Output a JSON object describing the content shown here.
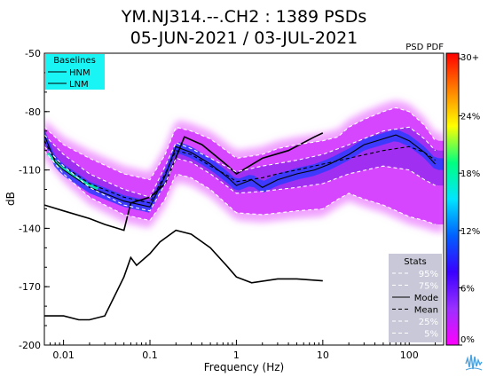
{
  "chart_data": {
    "type": "heatmap",
    "title": "YM.NJ314.--.CH2 : 1389 PSDs",
    "subtitle": "05-JUN-2021 / 03-JUL-2021",
    "xlabel": "Frequency (Hz)",
    "ylabel": "dB",
    "x_scale": "log",
    "xlim": [
      0.006,
      250
    ],
    "ylim": [
      -200,
      -50
    ],
    "x_ticks": [
      {
        "value": 0.01,
        "label": "0.01"
      },
      {
        "value": 0.1,
        "label": "0.1"
      },
      {
        "value": 1,
        "label": "1"
      },
      {
        "value": 10,
        "label": "10"
      },
      {
        "value": 100,
        "label": "100"
      }
    ],
    "y_ticks": [
      {
        "value": -50,
        "label": "-50"
      },
      {
        "value": -80,
        "label": "-80"
      },
      {
        "value": -110,
        "label": "-110"
      },
      {
        "value": -140,
        "label": "-140"
      },
      {
        "value": -170,
        "label": "-170"
      },
      {
        "value": -200,
        "label": "-200"
      }
    ],
    "colorbar": {
      "label": "PSD PDF",
      "ticks": [
        "0%",
        "6%",
        "12%",
        "18%",
        "24%",
        "30+"
      ],
      "colors": [
        "#ff00ff",
        "#9b30ff",
        "#3a00ff",
        "#0060ff",
        "#00e5ff",
        "#00ff80",
        "#ffff00",
        "#ff8000",
        "#ff0000"
      ]
    },
    "baselines_legend": {
      "title": "Baselines",
      "items": [
        "HNM",
        "LNM"
      ],
      "background": "#19f5f5"
    },
    "stats_legend": {
      "title": "Stats",
      "items": [
        {
          "label": "95%",
          "style": "dashed",
          "color": "#ffffff"
        },
        {
          "label": "75%",
          "style": "dashed",
          "color": "#ffffff"
        },
        {
          "label": "Mode",
          "style": "solid",
          "color": "#000000"
        },
        {
          "label": "Mean",
          "style": "dashed",
          "color": "#000000"
        },
        {
          "label": "25%",
          "style": "dashed",
          "color": "#ffffff"
        },
        {
          "label": "5%",
          "style": "dashed",
          "color": "#ffffff"
        }
      ],
      "background": "#c8c8d8"
    },
    "series": [
      {
        "name": "HNM",
        "color": "#000000",
        "x": [
          0.006,
          0.01,
          0.02,
          0.03,
          0.05,
          0.06,
          0.1,
          0.15,
          0.25,
          0.4,
          0.8,
          1,
          2,
          4,
          8,
          10
        ],
        "y": [
          -128,
          -131,
          -135,
          -138,
          -141,
          -127,
          -124,
          -117,
          -93,
          -97,
          -108,
          -112,
          -104,
          -100,
          -93,
          -91
        ]
      },
      {
        "name": "LNM",
        "color": "#000000",
        "x": [
          0.006,
          0.01,
          0.015,
          0.02,
          0.03,
          0.05,
          0.06,
          0.07,
          0.1,
          0.13,
          0.2,
          0.3,
          0.5,
          0.8,
          1,
          1.5,
          3,
          5,
          10
        ],
        "y": [
          -185,
          -185,
          -187,
          -187,
          -185,
          -165,
          -155,
          -159,
          -153,
          -147,
          -141,
          -143,
          -150,
          -160,
          -165,
          -168,
          -166,
          -166,
          -167
        ]
      },
      {
        "name": "Mode",
        "color": "#000000",
        "x": [
          0.006,
          0.008,
          0.01,
          0.02,
          0.05,
          0.1,
          0.15,
          0.2,
          0.3,
          0.5,
          0.8,
          1,
          1.5,
          2,
          3,
          5,
          8,
          12,
          20,
          30,
          50,
          70,
          100,
          150,
          200
        ],
        "y": [
          -92,
          -106,
          -110,
          -119,
          -126,
          -129,
          -113,
          -98,
          -101,
          -107,
          -114,
          -118,
          -115,
          -119,
          -115,
          -112,
          -110,
          -107,
          -102,
          -97,
          -94,
          -92,
          -95,
          -101,
          -107
        ]
      },
      {
        "name": "Mean",
        "color": "#000000",
        "x": [
          0.006,
          0.008,
          0.01,
          0.02,
          0.05,
          0.1,
          0.15,
          0.2,
          0.3,
          0.5,
          0.8,
          1,
          2,
          3,
          5,
          10,
          20,
          50,
          100,
          150,
          200
        ],
        "y": [
          -95,
          -105,
          -108,
          -117,
          -124,
          -127,
          -112,
          -100,
          -102,
          -108,
          -113,
          -116,
          -114,
          -112,
          -110,
          -107,
          -104,
          -100,
          -98,
          -101,
          -105
        ]
      },
      {
        "name": "95%",
        "color": "#ffffff",
        "x": [
          0.006,
          0.01,
          0.02,
          0.05,
          0.1,
          0.15,
          0.2,
          0.3,
          0.5,
          1,
          2,
          3,
          5,
          10,
          15,
          20,
          30,
          50,
          70,
          100,
          150,
          200
        ],
        "y": [
          -88,
          -97,
          -104,
          -112,
          -115,
          -102,
          -88,
          -90,
          -94,
          -104,
          -102,
          -99,
          -97,
          -95,
          -93,
          -88,
          -84,
          -80,
          -78,
          -80,
          -87,
          -95
        ]
      },
      {
        "name": "75%",
        "color": "#ffffff",
        "x": [
          0.006,
          0.01,
          0.02,
          0.05,
          0.1,
          0.15,
          0.2,
          0.3,
          0.5,
          1,
          2,
          5,
          10,
          20,
          50,
          100,
          150,
          200
        ],
        "y": [
          -92,
          -102,
          -112,
          -120,
          -124,
          -108,
          -96,
          -99,
          -104,
          -111,
          -108,
          -105,
          -102,
          -97,
          -90,
          -88,
          -94,
          -100
        ]
      },
      {
        "name": "25%",
        "color": "#ffffff",
        "x": [
          0.006,
          0.01,
          0.02,
          0.05,
          0.1,
          0.15,
          0.2,
          0.3,
          0.5,
          1,
          2,
          5,
          10,
          20,
          50,
          100,
          150,
          200
        ],
        "y": [
          -98,
          -108,
          -119,
          -128,
          -131,
          -117,
          -104,
          -106,
          -112,
          -122,
          -121,
          -119,
          -117,
          -112,
          -108,
          -110,
          -115,
          -118
        ]
      },
      {
        "name": "5%",
        "color": "#ffffff",
        "x": [
          0.006,
          0.01,
          0.02,
          0.05,
          0.1,
          0.15,
          0.2,
          0.3,
          0.5,
          1,
          2,
          5,
          10,
          15,
          20,
          30,
          50,
          100,
          150,
          200
        ],
        "y": [
          -100,
          -112,
          -124,
          -133,
          -136,
          -125,
          -112,
          -114,
          -120,
          -132,
          -133,
          -131,
          -130,
          -125,
          -122,
          -125,
          -128,
          -134,
          -136,
          -138
        ]
      }
    ]
  }
}
